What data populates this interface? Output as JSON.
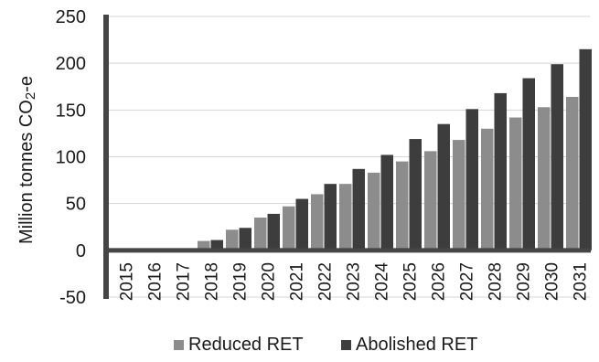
{
  "chart_data": {
    "type": "bar",
    "categories": [
      "2015",
      "2016",
      "2017",
      "2018",
      "2019",
      "2020",
      "2021",
      "2022",
      "2023",
      "2024",
      "2025",
      "2026",
      "2027",
      "2028",
      "2029",
      "2030",
      "2031"
    ],
    "series": [
      {
        "name": "Reduced RET",
        "color": "#8c8c8c",
        "values": [
          0,
          0,
          0,
          10,
          22,
          35,
          47,
          60,
          71,
          83,
          95,
          106,
          118,
          130,
          142,
          153,
          164
        ]
      },
      {
        "name": "Abolished RET",
        "color": "#3d3d3d",
        "values": [
          0,
          0,
          0,
          11,
          24,
          39,
          55,
          71,
          87,
          102,
          119,
          135,
          151,
          168,
          184,
          199,
          215
        ]
      }
    ],
    "ylabel": "Million tonnes CO2-e",
    "ylabel_parts": {
      "main": "Million tonnes CO",
      "sub": "2",
      "suffix": "-e"
    },
    "ylim": [
      -50,
      250
    ],
    "yticks": [
      -50,
      0,
      50,
      100,
      150,
      200,
      250
    ],
    "grid": "horizontal",
    "legend_position": "bottom",
    "axis_color": "#454545"
  }
}
